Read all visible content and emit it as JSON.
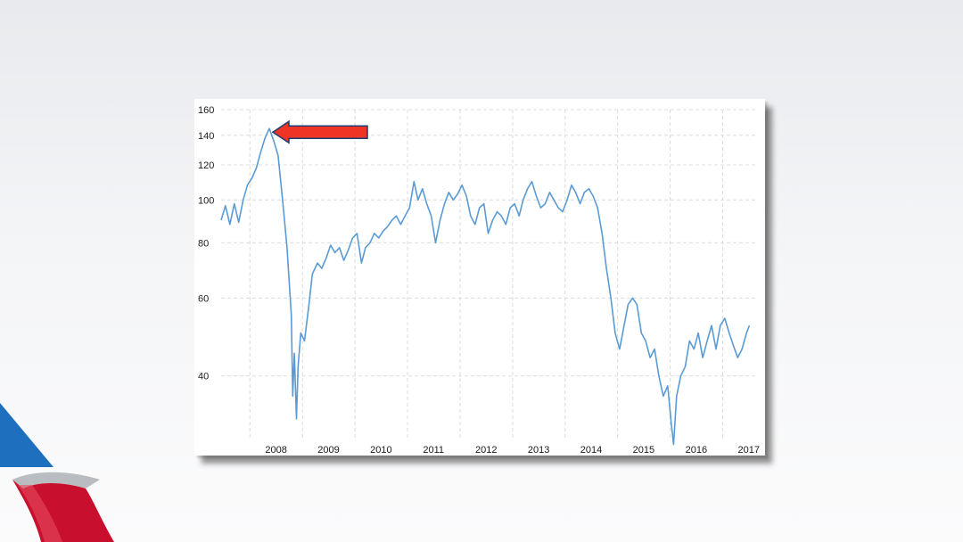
{
  "colors": {
    "line": "#5b9bd5",
    "grid": "#dcdcdc",
    "arrow_fill": "#ee3424",
    "arrow_stroke": "#1f3c73",
    "logo_blue": "#1f6fbf",
    "logo_red": "#c8102e",
    "logo_silver": "#b9bcc0"
  },
  "logo": {
    "icon": "american-airlines-flight-symbol"
  },
  "annotation": {
    "icon": "red-arrow-left",
    "points_to": "2008 peak"
  },
  "chart_data": {
    "type": "line",
    "title": "",
    "xlabel": "",
    "ylabel": "",
    "y_scale": "log",
    "ylim": [
      29,
      160
    ],
    "xlim": [
      "2007-06-15",
      "2017-07-15"
    ],
    "grid": true,
    "legend": "none",
    "x_tick_labels": [
      "2008",
      "2009",
      "2010",
      "2011",
      "2012",
      "2013",
      "2014",
      "2015",
      "2016",
      "2017"
    ],
    "y_tick_labels": [
      "160",
      "140",
      "120",
      "100",
      "80",
      "60",
      "40"
    ],
    "series": [
      {
        "x": [
          "2007-06-15",
          "2007-07-15",
          "2007-08-15",
          "2007-09-15",
          "2007-10-15",
          "2007-11-15",
          "2007-12-15",
          "2008-01-15",
          "2008-02-15",
          "2008-03-15",
          "2008-04-15",
          "2008-05-15",
          "2008-06-15",
          "2008-07-15",
          "2008-08-15",
          "2008-09-15",
          "2008-10-15",
          "2008-10-25",
          "2008-11-05",
          "2008-11-20",
          "2008-12-01",
          "2008-12-20",
          "2009-01-15",
          "2009-02-15",
          "2009-03-10",
          "2009-04-15",
          "2009-05-15",
          "2009-06-15",
          "2009-07-15",
          "2009-08-15",
          "2009-09-15",
          "2009-10-15",
          "2009-11-15",
          "2009-12-15",
          "2010-01-15",
          "2010-02-15",
          "2010-03-15",
          "2010-04-15",
          "2010-05-15",
          "2010-06-15",
          "2010-07-15",
          "2010-08-15",
          "2010-09-15",
          "2010-10-15",
          "2010-11-15",
          "2010-12-15",
          "2011-01-15",
          "2011-02-15",
          "2011-03-15",
          "2011-04-15",
          "2011-05-15",
          "2011-06-15",
          "2011-07-15",
          "2011-08-15",
          "2011-09-15",
          "2011-10-15",
          "2011-11-15",
          "2011-12-15",
          "2012-01-15",
          "2012-02-15",
          "2012-03-15",
          "2012-04-15",
          "2012-05-15",
          "2012-06-15",
          "2012-07-15",
          "2012-08-15",
          "2012-09-15",
          "2012-10-15",
          "2012-11-15",
          "2012-12-15",
          "2013-01-15",
          "2013-02-15",
          "2013-03-15",
          "2013-04-15",
          "2013-05-15",
          "2013-06-15",
          "2013-07-15",
          "2013-08-15",
          "2013-09-15",
          "2013-10-15",
          "2013-11-15",
          "2013-12-15",
          "2014-01-15",
          "2014-02-15",
          "2014-03-15",
          "2014-04-15",
          "2014-05-15",
          "2014-06-15",
          "2014-07-15",
          "2014-08-15",
          "2014-09-15",
          "2014-10-15",
          "2014-11-15",
          "2014-12-15",
          "2015-01-15",
          "2015-02-15",
          "2015-03-15",
          "2015-04-15",
          "2015-05-15",
          "2015-06-15",
          "2015-07-15",
          "2015-08-15",
          "2015-09-15",
          "2015-10-15",
          "2015-11-15",
          "2015-12-15",
          "2016-01-10",
          "2016-01-25",
          "2016-02-15",
          "2016-03-15",
          "2016-04-15",
          "2016-05-15",
          "2016-06-15",
          "2016-07-15",
          "2016-08-15",
          "2016-09-15",
          "2016-10-15",
          "2016-11-15",
          "2016-12-15",
          "2017-01-15",
          "2017-02-15",
          "2017-03-15",
          "2017-04-15",
          "2017-05-15",
          "2017-06-15",
          "2017-07-05"
        ],
        "y": [
          90,
          97,
          88,
          98,
          89,
          100,
          108,
          112,
          118,
          128,
          138,
          145,
          136,
          126,
          100,
          78,
          55,
          36,
          45,
          32,
          42,
          50,
          48,
          58,
          68,
          72,
          70,
          74,
          79,
          76,
          78,
          73,
          77,
          82,
          84,
          72,
          78,
          80,
          84,
          82,
          85,
          87,
          90,
          92,
          88,
          92,
          96,
          110,
          100,
          106,
          98,
          92,
          80,
          90,
          98,
          104,
          100,
          103,
          108,
          102,
          92,
          88,
          96,
          98,
          84,
          90,
          94,
          92,
          88,
          96,
          98,
          92,
          100,
          106,
          110,
          102,
          96,
          98,
          104,
          100,
          96,
          94,
          100,
          108,
          104,
          98,
          104,
          106,
          102,
          96,
          84,
          70,
          60,
          50,
          46,
          52,
          58,
          60,
          58,
          50,
          48,
          44,
          46,
          40,
          36,
          38,
          31,
          28,
          36,
          40,
          42,
          48,
          46,
          50,
          44,
          48,
          52,
          46,
          52,
          54,
          50,
          47,
          44,
          46,
          50,
          52
        ]
      }
    ]
  }
}
